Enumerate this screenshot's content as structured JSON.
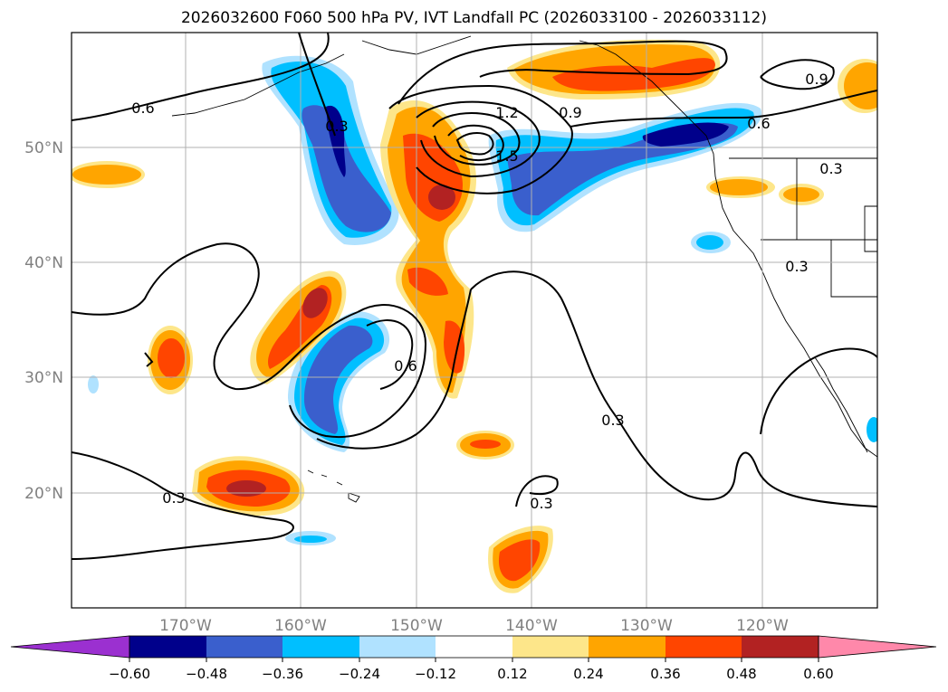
{
  "title": "2026032600 F060 500 hPa PV, IVT Landfall PC (2026033100 - 2026033112)",
  "axes": {
    "lat_labels": [
      "50°N",
      "40°N",
      "30°N",
      "20°N"
    ],
    "lon_labels": [
      "170°W",
      "160°W",
      "150°W",
      "140°W",
      "130°W",
      "120°W"
    ]
  },
  "contour_labels": [
    "0.6",
    "0.3",
    "1.2",
    "0.9",
    "1.5",
    "0.6",
    "0.9",
    "0.3",
    "0.3",
    "0.6",
    "0.3",
    "0.3",
    "0.3"
  ],
  "colorbar": {
    "tick_labels": [
      "−0.60",
      "−0.48",
      "−0.36",
      "−0.24",
      "−0.12",
      "0.12",
      "0.24",
      "0.36",
      "0.48",
      "0.60"
    ],
    "colors": [
      "#9b30d0",
      "#00008b",
      "#3a5fcd",
      "#00bfff",
      "#b0e2ff",
      "#ffffff",
      "#fde68a",
      "#ffa500",
      "#ff4500",
      "#b22222",
      "#ff88aa"
    ]
  },
  "styles": {
    "grid_color": "#b0b0b0",
    "axis_label_color": "#808080"
  }
}
